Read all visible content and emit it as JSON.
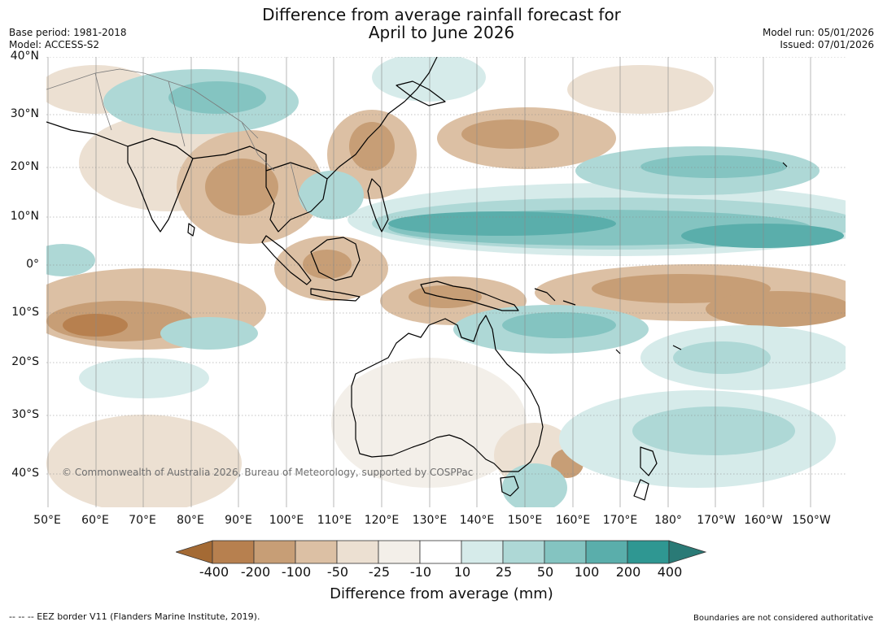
{
  "title": {
    "line1": "Difference from average rainfall forecast for",
    "line2": "April to June 2026"
  },
  "meta": {
    "base_period": "Base period: 1981-2018",
    "model": "Model: ACCESS-S2",
    "model_run": "Model run: 05/01/2026",
    "issued": "Issued: 07/01/2026"
  },
  "map": {
    "lat_labels": [
      "40°N",
      "30°N",
      "20°N",
      "10°N",
      "0°",
      "10°S",
      "20°S",
      "30°S",
      "40°S"
    ],
    "lon_labels": [
      "50°E",
      "60°E",
      "70°E",
      "80°E",
      "90°E",
      "100°E",
      "110°E",
      "120°E",
      "130°E",
      "140°E",
      "150°E",
      "160°E",
      "170°E",
      "180°",
      "170°W",
      "160°W",
      "150°W"
    ],
    "copyright": "© Commonwealth of Australia 2026, Bureau of Meteorology, supported by COSPPac"
  },
  "colorbar": {
    "ticks": [
      "-400",
      "-200",
      "-100",
      "-50",
      "-25",
      "-10",
      "10",
      "25",
      "50",
      "100",
      "200",
      "400"
    ],
    "colors": [
      "#a46a34",
      "#b7804f",
      "#c79e76",
      "#dcc0a4",
      "#ece0d2",
      "#f3efe9",
      "#ffffff",
      "#d6ebea",
      "#aed8d6",
      "#84c4c1",
      "#5aaeab",
      "#2f9792",
      "#2a7a76"
    ],
    "label": "Difference from average (mm)"
  },
  "footer": {
    "eez": "--  --  -- EEZ border V11 (Flanders Marine Institute, 2019).",
    "disclaimer": "Boundaries are not considered authoritative"
  }
}
